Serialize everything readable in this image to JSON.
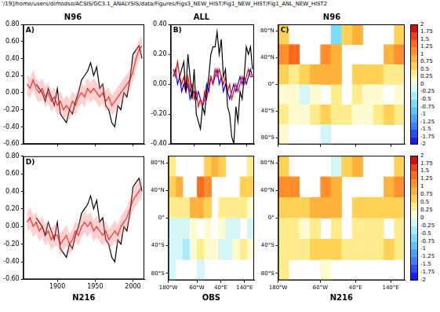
{
  "header": "'/19]/home/users/dirhodso/ACSIS/GC3.1_ANALYSIS/data/Figures/Figs3_NEW_HIST/Fig1_NEW_HIST/Fig1_ANL_NEW_HIST2",
  "chart_data": [
    {
      "type": "line",
      "title": "N96",
      "annotation": "A)",
      "grid": false,
      "tick_labels": "y",
      "x": [
        1860,
        1864,
        1868,
        1872,
        1876,
        1880,
        1884,
        1888,
        1892,
        1896,
        1900,
        1904,
        1908,
        1912,
        1916,
        1920,
        1924,
        1928,
        1932,
        1936,
        1940,
        1944,
        1948,
        1952,
        1956,
        1960,
        1964,
        1968,
        1972,
        1976,
        1980,
        1984,
        1988,
        1992,
        1996,
        2000,
        2004,
        2008,
        2012
      ],
      "xlim": [
        1855,
        2015
      ],
      "xticks": [
        1900,
        1950,
        2000
      ],
      "ylim": [
        -0.6,
        0.8
      ],
      "yticks": [
        {
          "value": -0.6,
          "label": "-0.60"
        },
        {
          "value": -0.4,
          "label": "-0.40"
        },
        {
          "value": -0.2,
          "label": "-0.20"
        },
        {
          "value": 0,
          "label": "0.00"
        },
        {
          "value": 0.2,
          "label": "0.20"
        },
        {
          "value": 0.4,
          "label": "0.40"
        },
        {
          "value": 0.6,
          "label": "0.60"
        },
        {
          "value": 0.8,
          "label": "0.80"
        }
      ],
      "series": [
        {
          "color": "#000000",
          "values": [
            null,
            null,
            null,
            0.1,
            0.05,
            0.0,
            -0.1,
            0.05,
            -0.05,
            -0.15,
            0.05,
            -0.25,
            -0.3,
            -0.35,
            -0.2,
            -0.25,
            -0.1,
            0.0,
            0.15,
            0.2,
            0.25,
            0.35,
            0.2,
            0.3,
            0.05,
            0.1,
            -0.15,
            -0.2,
            -0.35,
            -0.4,
            -0.15,
            -0.2,
            0.0,
            -0.05,
            0.15,
            0.45,
            0.5,
            0.55,
            0.4
          ]
        },
        {
          "color": "#ff0000",
          "spread": 0.12,
          "values": [
            0.1,
            0.05,
            0.15,
            0.05,
            0.0,
            0.05,
            -0.05,
            0.0,
            -0.1,
            -0.05,
            -0.15,
            -0.1,
            -0.2,
            -0.15,
            -0.2,
            -0.1,
            -0.15,
            -0.05,
            0.0,
            -0.05,
            0.05,
            0.0,
            0.05,
            0.0,
            -0.05,
            0.0,
            -0.1,
            -0.05,
            -0.15,
            -0.1,
            -0.05,
            0.0,
            0.05,
            0.1,
            0.15,
            0.25,
            0.4,
            0.5,
            0.55
          ]
        }
      ]
    },
    {
      "type": "line",
      "title": "ALL",
      "annotation": "B)",
      "grid": false,
      "tick_labels": "y",
      "x": [
        1860,
        1864,
        1868,
        1872,
        1876,
        1880,
        1884,
        1888,
        1892,
        1896,
        1900,
        1904,
        1908,
        1912,
        1916,
        1920,
        1924,
        1928,
        1932,
        1936,
        1940,
        1944,
        1948,
        1952,
        1956,
        1960,
        1964,
        1968,
        1972,
        1976,
        1980,
        1984,
        1988,
        1992,
        1996,
        2000,
        2004,
        2008,
        2012
      ],
      "xlim": [
        1855,
        2015
      ],
      "xticks": [
        1900,
        1950,
        2000
      ],
      "ylim": [
        -0.4,
        0.4
      ],
      "yticks": [
        {
          "value": -0.4,
          "label": "-0.40"
        },
        {
          "value": -0.2,
          "label": "-0.20"
        },
        {
          "value": 0,
          "label": "0.00"
        },
        {
          "value": 0.2,
          "label": "0.20"
        },
        {
          "value": 0.4,
          "label": "0.40"
        }
      ],
      "series": [
        {
          "color": "#000000",
          "values": [
            null,
            null,
            null,
            0.05,
            0.1,
            0.15,
            -0.05,
            0.2,
            0.05,
            -0.1,
            0.1,
            -0.2,
            -0.25,
            -0.3,
            -0.15,
            -0.2,
            -0.05,
            0.05,
            0.2,
            0.25,
            0.25,
            0.35,
            0.2,
            0.3,
            0.05,
            0.1,
            -0.15,
            -0.2,
            -0.35,
            -0.4,
            -0.15,
            -0.25,
            -0.05,
            -0.1,
            0.05,
            0.25,
            0.2,
            0.25,
            0.1
          ]
        },
        {
          "color": "#ff0000",
          "values": [
            0.1,
            0.05,
            0.15,
            0.05,
            0.0,
            0.05,
            -0.05,
            0.05,
            -0.05,
            0.0,
            -0.1,
            -0.05,
            -0.15,
            -0.1,
            -0.15,
            -0.05,
            -0.1,
            0.0,
            0.05,
            0.0,
            0.1,
            0.05,
            0.1,
            0.05,
            0.0,
            0.05,
            -0.05,
            0.0,
            -0.1,
            -0.05,
            0.0,
            -0.05,
            0.0,
            0.05,
            0.0,
            0.05,
            0.1,
            0.05,
            0.05
          ]
        },
        {
          "color": "#0000ff",
          "values": [
            0.05,
            0.1,
            0.0,
            0.05,
            -0.05,
            0.0,
            -0.05,
            0.0,
            -0.1,
            -0.05,
            -0.05,
            -0.1,
            -0.05,
            -0.1,
            -0.15,
            -0.1,
            0.0,
            -0.05,
            0.05,
            0.0,
            0.05,
            0.1,
            0.0,
            0.05,
            -0.05,
            0.0,
            -0.05,
            -0.1,
            -0.05,
            0.0,
            -0.05,
            0.0,
            0.05,
            0.0,
            0.05,
            0.0,
            0.05,
            0.1,
            0.05
          ]
        }
      ]
    },
    {
      "type": "map",
      "title": "N96",
      "annotation": "C)",
      "grid": false,
      "tick_labels": "y",
      "xlim": [
        -180,
        180
      ],
      "xticks": [
        {
          "value": -180,
          "label": "180°W"
        },
        {
          "value": -60,
          "label": "60°W"
        },
        {
          "value": 40,
          "label": "40°E"
        },
        {
          "value": 140,
          "label": "140°E"
        }
      ],
      "ylim": [
        -90,
        90
      ],
      "yticks": [
        {
          "value": -80,
          "label": "80°S"
        },
        {
          "value": -40,
          "label": "40°S"
        },
        {
          "value": 0,
          "label": "0°"
        },
        {
          "value": 40,
          "label": "40°N"
        },
        {
          "value": 80,
          "label": "80°N"
        }
      ],
      "lon": [
        -165,
        -135,
        -105,
        -75,
        -45,
        -15,
        15,
        45,
        75,
        105,
        135,
        165
      ],
      "lat": [
        75,
        45,
        15,
        -15,
        -45,
        -75
      ],
      "cells": [
        [
          0.5,
          null,
          null,
          null,
          null,
          -0.75,
          0.5,
          0.75,
          null,
          null,
          null,
          0.5
        ],
        [
          1.0,
          1.25,
          null,
          null,
          1.0,
          0.75,
          null,
          null,
          null,
          null,
          0.75,
          1.0
        ],
        [
          0.5,
          0.25,
          0.5,
          0.75,
          0.75,
          0.75,
          null,
          0.5,
          0.5,
          0.5,
          0.25,
          0.25
        ],
        [
          0.0,
          0.0,
          -0.25,
          0.0,
          null,
          0.25,
          null,
          0.25,
          0.0,
          0.0,
          null,
          0.0
        ],
        [
          0.25,
          0.0,
          0.0,
          0.25,
          0.5,
          0.25,
          0.25,
          0.0,
          0.0,
          0.25,
          0.5,
          0.25
        ],
        [
          0.0,
          null,
          null,
          null,
          -0.25,
          null,
          null,
          null,
          null,
          null,
          null,
          null
        ]
      ],
      "clim": [
        -2,
        2
      ],
      "colors": [
        "#1c1cff",
        "#2b4cff",
        "#3c7dff",
        "#4aa3ff",
        "#5cc3ff",
        "#7bdcff",
        "#a6eefc",
        "#d4f7f5",
        "#fffbd0",
        "#ffec8c",
        "#ffd255",
        "#ffb33a",
        "#ff8f2a",
        "#ff6a1f",
        "#f04016",
        "#d01010"
      ],
      "colorbar": {
        "ticks": [
          -2,
          -1.75,
          -1.5,
          -1.25,
          -1,
          -0.75,
          -0.5,
          -0.25,
          0,
          0.25,
          0.5,
          0.75,
          1,
          1.25,
          1.5,
          1.75,
          2
        ]
      }
    },
    {
      "type": "line",
      "xlabel": "N216",
      "annotation": "D)",
      "grid": false,
      "x": [
        1860,
        1864,
        1868,
        1872,
        1876,
        1880,
        1884,
        1888,
        1892,
        1896,
        1900,
        1904,
        1908,
        1912,
        1916,
        1920,
        1924,
        1928,
        1932,
        1936,
        1940,
        1944,
        1948,
        1952,
        1956,
        1960,
        1964,
        1968,
        1972,
        1976,
        1980,
        1984,
        1988,
        1992,
        1996,
        2000,
        2004,
        2008,
        2012
      ],
      "xlim": [
        1855,
        2015
      ],
      "xticks": [
        1900,
        1950,
        2000
      ],
      "ylim": [
        -0.6,
        0.8
      ],
      "yticks": [
        {
          "value": -0.6,
          "label": "-0.60"
        },
        {
          "value": -0.4,
          "label": "-0.40"
        },
        {
          "value": -0.2,
          "label": "-0.20"
        },
        {
          "value": 0,
          "label": "0.00"
        },
        {
          "value": 0.2,
          "label": "0.20"
        },
        {
          "value": 0.4,
          "label": "0.40"
        },
        {
          "value": 0.6,
          "label": "0.60"
        },
        {
          "value": 0.8,
          "label": "0.80"
        }
      ],
      "series": [
        {
          "color": "#000000",
          "values": [
            null,
            null,
            null,
            0.1,
            0.05,
            0.0,
            -0.1,
            0.05,
            -0.05,
            -0.15,
            0.05,
            -0.25,
            -0.3,
            -0.35,
            -0.2,
            -0.25,
            -0.1,
            0.0,
            0.15,
            0.2,
            0.25,
            0.35,
            0.2,
            0.3,
            0.05,
            0.1,
            -0.15,
            -0.2,
            -0.35,
            -0.4,
            -0.15,
            -0.2,
            0.0,
            -0.05,
            0.15,
            0.45,
            0.5,
            0.55,
            0.4
          ]
        },
        {
          "color": "#ff0000",
          "spread": 0.12,
          "values": [
            0.05,
            0.1,
            0.0,
            0.05,
            -0.05,
            0.0,
            -0.1,
            -0.05,
            -0.15,
            -0.1,
            -0.1,
            -0.2,
            -0.15,
            -0.1,
            -0.2,
            -0.15,
            -0.05,
            -0.1,
            0.0,
            0.05,
            0.0,
            0.05,
            -0.05,
            0.0,
            -0.05,
            -0.1,
            -0.05,
            -0.15,
            -0.1,
            -0.05,
            -0.1,
            0.0,
            0.05,
            0.1,
            0.2,
            0.3,
            0.35,
            0.4,
            0.45
          ]
        }
      ]
    },
    {
      "type": "map",
      "xlabel": "OBS",
      "grid": false,
      "xlim": [
        -180,
        180
      ],
      "xticks": [
        {
          "value": -180,
          "label": "180°W"
        },
        {
          "value": -60,
          "label": "60°W"
        },
        {
          "value": 40,
          "label": "40°E"
        },
        {
          "value": 140,
          "label": "140°E"
        }
      ],
      "ylim": [
        -90,
        90
      ],
      "yticks": [
        {
          "value": -80,
          "label": "80°S"
        },
        {
          "value": -40,
          "label": "40°S"
        },
        {
          "value": 0,
          "label": "0°"
        },
        {
          "value": 40,
          "label": "40°N"
        },
        {
          "value": 80,
          "label": "80°N"
        }
      ],
      "lon": [
        -165,
        -135,
        -105,
        -75,
        -45,
        -15,
        15,
        45,
        75,
        105,
        135,
        165
      ],
      "lat": [
        75,
        45,
        15,
        -15,
        -45,
        -75
      ],
      "cells": [
        [
          0.25,
          null,
          null,
          null,
          null,
          0.5,
          0.75,
          0.5,
          null,
          null,
          null,
          0.25
        ],
        [
          0.5,
          0.75,
          null,
          null,
          1.25,
          1.0,
          null,
          null,
          null,
          null,
          0.5,
          0.5
        ],
        [
          0.25,
          0.25,
          0.25,
          0.75,
          0.75,
          0.5,
          null,
          0.25,
          0.25,
          0.25,
          0.25,
          0.0
        ],
        [
          -0.25,
          -0.25,
          -0.25,
          0.0,
          null,
          0.0,
          null,
          0.0,
          -0.25,
          -0.25,
          null,
          -0.25
        ],
        [
          -0.25,
          -0.25,
          -0.5,
          0.0,
          0.25,
          0.0,
          0.0,
          -0.25,
          -0.25,
          0.0,
          0.25,
          0.0
        ],
        [
          -0.25,
          null,
          null,
          null,
          -0.25,
          null,
          null,
          null,
          null,
          null,
          null,
          null
        ]
      ],
      "clim": [
        -2,
        2
      ],
      "colors": [
        "#1c1cff",
        "#2b4cff",
        "#3c7dff",
        "#4aa3ff",
        "#5cc3ff",
        "#7bdcff",
        "#a6eefc",
        "#d4f7f5",
        "#fffbd0",
        "#ffec8c",
        "#ffd255",
        "#ffb33a",
        "#ff8f2a",
        "#ff6a1f",
        "#f04016",
        "#d01010"
      ]
    },
    {
      "type": "map",
      "xlabel": "N216",
      "grid": false,
      "xlim": [
        -180,
        180
      ],
      "xticks": [
        {
          "value": -180,
          "label": "180°W"
        },
        {
          "value": -60,
          "label": "60°W"
        },
        {
          "value": 40,
          "label": "40°E"
        },
        {
          "value": 140,
          "label": "140°E"
        }
      ],
      "ylim": [
        -90,
        90
      ],
      "yticks": [
        {
          "value": -80,
          "label": "80°S"
        },
        {
          "value": -40,
          "label": "40°S"
        },
        {
          "value": 0,
          "label": "0°"
        },
        {
          "value": 40,
          "label": "40°N"
        },
        {
          "value": 80,
          "label": "80°N"
        }
      ],
      "lon": [
        -165,
        -135,
        -105,
        -75,
        -45,
        -15,
        15,
        45,
        75,
        105,
        135,
        165
      ],
      "lat": [
        75,
        45,
        15,
        -15,
        -45,
        -75
      ],
      "cells": [
        [
          0.5,
          null,
          null,
          null,
          null,
          -0.25,
          0.5,
          0.75,
          null,
          null,
          null,
          0.5
        ],
        [
          1.0,
          1.0,
          null,
          null,
          1.0,
          0.75,
          null,
          null,
          null,
          null,
          0.75,
          1.0
        ],
        [
          0.5,
          0.5,
          0.5,
          0.75,
          0.75,
          0.75,
          null,
          0.5,
          0.5,
          0.5,
          0.5,
          0.5
        ],
        [
          0.25,
          0.25,
          0.0,
          0.25,
          null,
          0.25,
          null,
          0.25,
          0.25,
          0.25,
          null,
          0.25
        ],
        [
          0.25,
          0.25,
          0.25,
          0.5,
          0.5,
          0.5,
          0.25,
          0.25,
          0.25,
          0.25,
          0.5,
          0.25
        ],
        [
          0.25,
          null,
          null,
          null,
          0.0,
          null,
          null,
          null,
          null,
          null,
          null,
          null
        ]
      ],
      "clim": [
        -2,
        2
      ],
      "colors": [
        "#1c1cff",
        "#2b4cff",
        "#3c7dff",
        "#4aa3ff",
        "#5cc3ff",
        "#7bdcff",
        "#a6eefc",
        "#d4f7f5",
        "#fffbd0",
        "#ffec8c",
        "#ffd255",
        "#ffb33a",
        "#ff8f2a",
        "#ff6a1f",
        "#f04016",
        "#d01010"
      ],
      "colorbar": {
        "ticks": [
          -2,
          -1.75,
          -1.5,
          -1.25,
          -1,
          -0.75,
          -0.5,
          -0.25,
          0,
          0.25,
          0.5,
          0.75,
          1,
          1.25,
          1.5,
          1.75,
          2
        ]
      }
    }
  ]
}
